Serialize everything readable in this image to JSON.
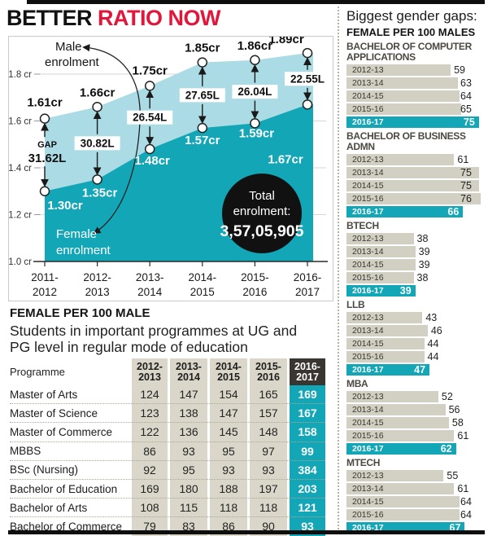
{
  "title": {
    "part1": "BETTER",
    "part2": "RATIO NOW"
  },
  "colors": {
    "accent_red": "#e2163a",
    "teal": "#12a6b7",
    "light_blue": "#abdbe4",
    "bar_gray": "#d2cfc3",
    "table_band": "#dad7ca",
    "header_dark": "#393632",
    "rule_black": "#0e0e0e"
  },
  "chart_data": [
    {
      "type": "area",
      "x": [
        "2011-2012",
        "2012-2013",
        "2013-2014",
        "2014-2015",
        "2015-2016",
        "2016-2017"
      ],
      "series": [
        {
          "name": "Male enrolment",
          "unit": "cr",
          "values": [
            1.61,
            1.66,
            1.75,
            1.85,
            1.86,
            1.89
          ]
        },
        {
          "name": "Female enrolment",
          "unit": "cr",
          "values": [
            1.3,
            1.35,
            1.48,
            1.57,
            1.59,
            1.67
          ]
        }
      ],
      "gap_label": "GAP",
      "gaps": [
        "31.62L",
        "30.82L",
        "26.54L",
        "27.65L",
        "26.04L",
        "22.55L"
      ],
      "yticks": [
        {
          "v": 1.8,
          "label": "1.8 cr"
        },
        {
          "v": 1.6,
          "label": "1.6 cr"
        },
        {
          "v": 1.4,
          "label": "1.4 cr"
        },
        {
          "v": 1.2,
          "label": "1.2 cr"
        },
        {
          "v": 1.0,
          "label": "1.0 cr"
        }
      ],
      "ylim": [
        1.0,
        1.95
      ],
      "grid": true,
      "annotations": {
        "male_line1": "Male",
        "male_line2": "enrolment",
        "female_line1": "Female",
        "female_line2": "enrolment"
      },
      "total": {
        "line1": "Total",
        "line2": "enrolment:",
        "value": "3,57,05,905"
      }
    },
    {
      "type": "table",
      "title": "FEMALE PER 100 MALE",
      "subtitle": "Students in important programmes at UG and PG level in regular mode of education",
      "columns": [
        "Programme",
        "2012-2013",
        "2013-2014",
        "2014-2015",
        "2015-2016",
        "2016-2017"
      ],
      "highlight_column": "2016-2017",
      "rows": [
        [
          "Master of Arts",
          124,
          147,
          154,
          165,
          169
        ],
        [
          "Master of Science",
          123,
          138,
          147,
          157,
          167
        ],
        [
          "Master of Commerce",
          122,
          136,
          145,
          148,
          158
        ],
        [
          "MBBS",
          86,
          93,
          95,
          97,
          99
        ],
        [
          "BSc (Nursing)",
          92,
          95,
          93,
          93,
          384
        ],
        [
          "Bachelor of Education",
          169,
          180,
          188,
          197,
          203
        ],
        [
          "Bachelor of Arts",
          108,
          115,
          118,
          118,
          121
        ],
        [
          "Bachelor of Commerce",
          79,
          83,
          86,
          90,
          93
        ]
      ]
    },
    {
      "type": "bar",
      "title": "Biggest gender gaps:",
      "subtitle": "FEMALE PER 100 MALES",
      "categories": [
        "2012-13",
        "2013-14",
        "2014-15",
        "2015-16",
        "2016-17"
      ],
      "highlight_category": "2016-17",
      "xmax": 76,
      "groups": [
        {
          "name": "BACHELOR OF COMPUTER APPLICATIONS",
          "values": [
            59,
            63,
            64,
            65,
            75
          ]
        },
        {
          "name": "BACHELOR OF BUSINESS ADMN",
          "values": [
            61,
            75,
            75,
            76,
            66
          ]
        },
        {
          "name": "BTECH",
          "values": [
            38,
            39,
            39,
            38,
            39
          ]
        },
        {
          "name": "LLB",
          "values": [
            43,
            46,
            44,
            44,
            47
          ]
        },
        {
          "name": "MBA",
          "values": [
            52,
            56,
            58,
            61,
            62
          ]
        },
        {
          "name": "MTECH",
          "values": [
            55,
            61,
            64,
            64,
            67
          ]
        }
      ]
    }
  ]
}
